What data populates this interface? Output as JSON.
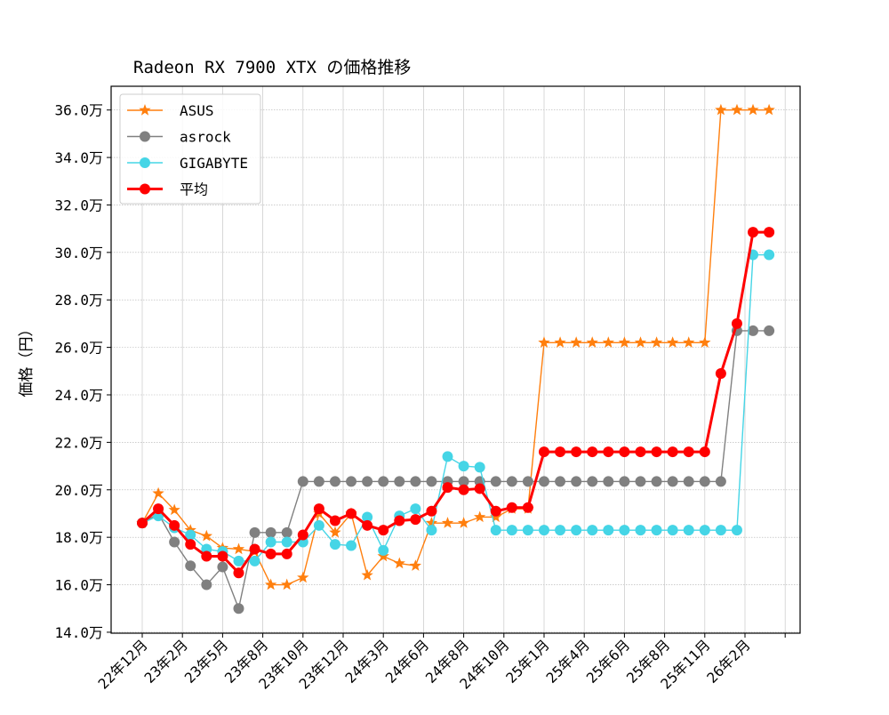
{
  "chart_data": {
    "type": "line",
    "title": "Radeon RX 7900 XTX の価格推移",
    "xlabel": "",
    "ylabel": "価格（円）",
    "ylim": [
      13.96,
      37.0
    ],
    "y_unit_suffix": "万",
    "yticks": [
      14.0,
      16.0,
      18.0,
      20.0,
      22.0,
      24.0,
      26.0,
      28.0,
      30.0,
      32.0,
      34.0,
      36.0
    ],
    "ytick_labels": [
      "14.0万",
      "16.0万",
      "18.0万",
      "20.0万",
      "22.0万",
      "24.0万",
      "26.0万",
      "28.0万",
      "30.0万",
      "32.0万",
      "34.0万",
      "36.0万"
    ],
    "xtick_labels": [
      "22年12月",
      "23年2月",
      "23年5月",
      "23年8月",
      "23年10月",
      "23年12月",
      "24年3月",
      "24年6月",
      "24年8月",
      "24年10月",
      "25年1月",
      "25年4月",
      "25年6月",
      "25年8月",
      "25年11月",
      "26年2月"
    ],
    "grid": true,
    "legend_position": "upper-left",
    "series": [
      {
        "name": "ASUS",
        "color": "#ff7f0e",
        "marker": "star",
        "values": [
          18.6,
          19.85,
          19.15,
          18.3,
          18.05,
          17.55,
          17.5,
          17.4,
          16.0,
          16.0,
          16.3,
          19.0,
          18.2,
          19.0,
          16.4,
          17.2,
          16.9,
          16.8,
          18.6,
          18.6,
          18.6,
          18.85,
          18.85,
          19.2,
          19.2,
          26.2,
          26.2,
          26.2,
          26.2,
          26.2,
          26.2,
          26.2,
          26.2,
          26.2,
          26.2,
          26.2,
          36.0,
          36.0,
          36.0,
          36.0
        ]
      },
      {
        "name": "asrock",
        "color": "#808080",
        "marker": "circle",
        "values": [
          18.6,
          19.0,
          17.8,
          16.8,
          16.0,
          16.75,
          15.0,
          18.2,
          18.2,
          18.2,
          20.35,
          20.35,
          20.35,
          20.35,
          20.35,
          20.35,
          20.35,
          20.35,
          20.35,
          20.35,
          20.35,
          20.35,
          20.35,
          20.35,
          20.35,
          20.35,
          20.35,
          20.35,
          20.35,
          20.35,
          20.35,
          20.35,
          20.35,
          20.35,
          20.35,
          20.35,
          20.35,
          26.7,
          26.7,
          26.7
        ]
      },
      {
        "name": "GIGABYTE",
        "color": "#45d5e6",
        "marker": "circle",
        "values": [
          18.6,
          18.9,
          18.4,
          18.1,
          17.5,
          17.4,
          17.0,
          17.0,
          17.8,
          17.8,
          17.8,
          18.5,
          17.7,
          17.65,
          18.85,
          17.45,
          18.9,
          19.2,
          18.3,
          21.4,
          21.0,
          20.95,
          18.3,
          18.3,
          18.3,
          18.3,
          18.3,
          18.3,
          18.3,
          18.3,
          18.3,
          18.3,
          18.3,
          18.3,
          18.3,
          18.3,
          18.3,
          18.3,
          29.9,
          29.9
        ]
      },
      {
        "name": "平均",
        "color": "#ff0000",
        "marker": "circle",
        "values": [
          18.6,
          19.2,
          18.5,
          17.7,
          17.2,
          17.2,
          16.5,
          17.5,
          17.3,
          17.3,
          18.1,
          19.2,
          18.7,
          19.0,
          18.5,
          18.3,
          18.7,
          18.75,
          19.1,
          20.1,
          20.0,
          20.05,
          19.1,
          19.25,
          19.25,
          21.6,
          21.6,
          21.6,
          21.6,
          21.6,
          21.6,
          21.6,
          21.6,
          21.6,
          21.6,
          21.6,
          24.9,
          27.0,
          30.85,
          30.85
        ]
      }
    ]
  }
}
